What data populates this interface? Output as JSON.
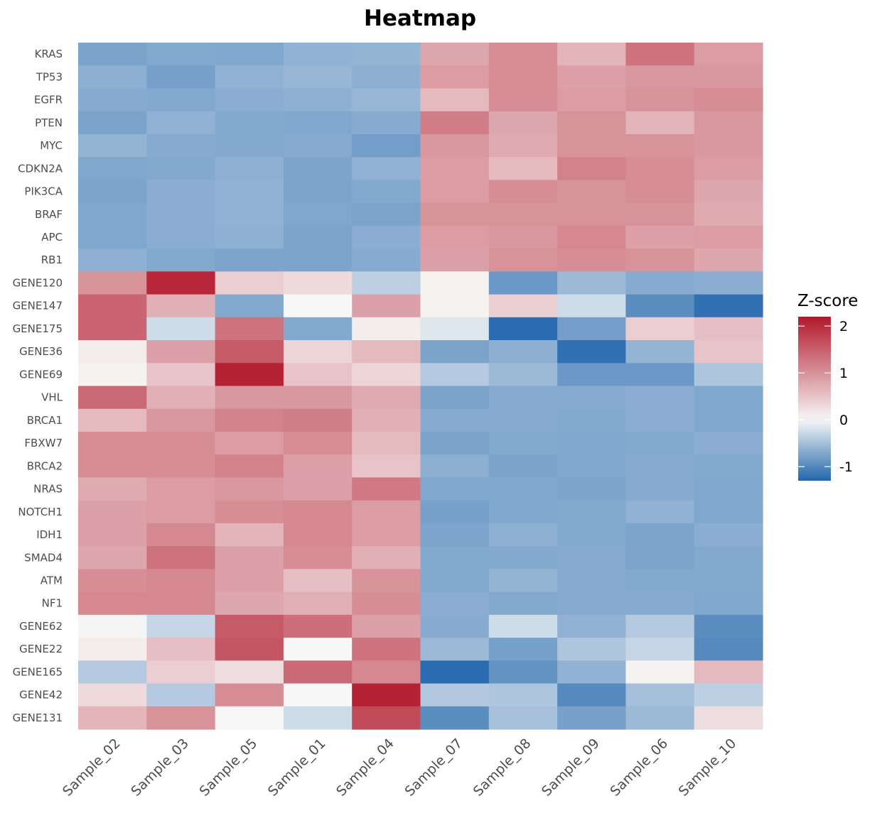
{
  "chart_data": {
    "type": "heatmap",
    "title": "Heatmap",
    "columns": [
      "Sample_02",
      "Sample_03",
      "Sample_05",
      "Sample_01",
      "Sample_04",
      "Sample_07",
      "Sample_08",
      "Sample_09",
      "Sample_06",
      "Sample_10"
    ],
    "rows": [
      "KRAS",
      "TP53",
      "EGFR",
      "PTEN",
      "MYC",
      "CDKN2A",
      "PIK3CA",
      "BRAF",
      "APC",
      "RB1",
      "GENE120",
      "GENE147",
      "GENE175",
      "GENE36",
      "GENE69",
      "VHL",
      "BRCA1",
      "FBXW7",
      "BRCA2",
      "NRAS",
      "NOTCH1",
      "IDH1",
      "SMAD4",
      "ATM",
      "NF1",
      "GENE62",
      "GENE22",
      "GENE165",
      "GENE42",
      "GENE131"
    ],
    "values": [
      [
        -0.75,
        -0.7,
        -0.72,
        -0.62,
        -0.6,
        0.8,
        1.05,
        0.65,
        1.3,
        0.9
      ],
      [
        -0.65,
        -0.78,
        -0.62,
        -0.58,
        -0.65,
        0.9,
        1.05,
        0.85,
        0.95,
        0.95
      ],
      [
        -0.68,
        -0.7,
        -0.66,
        -0.64,
        -0.58,
        0.6,
        1.05,
        0.9,
        1.0,
        1.05
      ],
      [
        -0.75,
        -0.62,
        -0.7,
        -0.72,
        -0.68,
        1.2,
        0.8,
        1.0,
        0.65,
        0.95
      ],
      [
        -0.6,
        -0.68,
        -0.7,
        -0.68,
        -0.8,
        0.95,
        0.75,
        1.0,
        1.0,
        0.95
      ],
      [
        -0.72,
        -0.7,
        -0.64,
        -0.74,
        -0.62,
        0.9,
        0.6,
        1.15,
        1.05,
        0.9
      ],
      [
        -0.74,
        -0.66,
        -0.62,
        -0.74,
        -0.7,
        0.9,
        1.05,
        1.0,
        1.05,
        0.8
      ],
      [
        -0.72,
        -0.66,
        -0.62,
        -0.72,
        -0.74,
        1.0,
        1.0,
        1.0,
        1.0,
        0.75
      ],
      [
        -0.72,
        -0.66,
        -0.64,
        -0.74,
        -0.66,
        0.9,
        0.95,
        1.1,
        0.85,
        0.9
      ],
      [
        -0.64,
        -0.7,
        -0.74,
        -0.74,
        -0.68,
        0.85,
        1.0,
        1.05,
        1.0,
        0.8
      ],
      [
        1.0,
        2.05,
        0.4,
        0.3,
        -0.35,
        0.05,
        -0.85,
        -0.55,
        -0.68,
        -0.66
      ],
      [
        1.45,
        0.7,
        -0.7,
        0.0,
        0.85,
        0.05,
        0.4,
        -0.25,
        -0.95,
        -1.2
      ],
      [
        1.45,
        -0.25,
        1.3,
        -0.7,
        0.1,
        -0.15,
        -1.25,
        -0.8,
        0.4,
        0.55
      ],
      [
        0.1,
        0.85,
        1.55,
        0.35,
        0.6,
        -0.75,
        -0.65,
        -1.2,
        -0.6,
        0.5
      ],
      [
        0.05,
        0.5,
        2.1,
        0.5,
        0.35,
        -0.4,
        -0.55,
        -0.85,
        -0.85,
        -0.45
      ],
      [
        1.4,
        0.7,
        0.95,
        0.95,
        0.75,
        -0.75,
        -0.68,
        -0.68,
        -0.66,
        -0.72
      ],
      [
        0.6,
        0.95,
        1.15,
        1.2,
        0.7,
        -0.68,
        -0.68,
        -0.7,
        -0.66,
        -0.72
      ],
      [
        1.05,
        1.05,
        0.9,
        1.05,
        0.6,
        -0.75,
        -0.7,
        -0.72,
        -0.7,
        -0.66
      ],
      [
        1.05,
        1.05,
        1.15,
        0.85,
        0.5,
        -0.65,
        -0.75,
        -0.72,
        -0.68,
        -0.7
      ],
      [
        0.75,
        0.9,
        0.95,
        0.85,
        1.25,
        -0.72,
        -0.72,
        -0.74,
        -0.68,
        -0.72
      ],
      [
        0.85,
        0.9,
        1.05,
        1.1,
        0.9,
        -0.78,
        -0.72,
        -0.7,
        -0.62,
        -0.72
      ],
      [
        0.85,
        1.1,
        0.65,
        1.1,
        0.9,
        -0.74,
        -0.64,
        -0.7,
        -0.74,
        -0.66
      ],
      [
        0.8,
        1.3,
        0.85,
        1.05,
        0.7,
        -0.7,
        -0.7,
        -0.68,
        -0.74,
        -0.7
      ],
      [
        1.05,
        1.1,
        0.85,
        0.55,
        1.0,
        -0.7,
        -0.6,
        -0.68,
        -0.7,
        -0.7
      ],
      [
        1.1,
        1.1,
        0.8,
        0.7,
        1.05,
        -0.66,
        -0.7,
        -0.68,
        -0.68,
        -0.72
      ],
      [
        0.02,
        -0.3,
        1.55,
        1.35,
        0.85,
        -0.68,
        -0.25,
        -0.62,
        -0.4,
        -0.95
      ],
      [
        0.1,
        0.55,
        1.6,
        0.0,
        1.3,
        -0.55,
        -0.78,
        -0.45,
        -0.3,
        -0.98
      ],
      [
        -0.4,
        0.4,
        0.25,
        1.4,
        1.1,
        -1.25,
        -0.9,
        -0.62,
        0.05,
        0.6
      ],
      [
        0.3,
        -0.4,
        1.05,
        0.0,
        2.1,
        -0.42,
        -0.45,
        -0.98,
        -0.5,
        -0.35
      ],
      [
        0.65,
        1.0,
        0.0,
        -0.25,
        1.7,
        -0.95,
        -0.48,
        -0.78,
        -0.55,
        0.25
      ]
    ],
    "legend": {
      "title": "Z-score",
      "ticks": [
        2,
        1,
        0,
        -1
      ],
      "tick_labels": [
        "2",
        "1",
        "0",
        "-1"
      ],
      "range": [
        -1.3,
        2.2
      ],
      "colors": {
        "low": "#2166ac",
        "mid": "#f7f7f7",
        "high": "#b2182b"
      },
      "placement": "right"
    }
  }
}
